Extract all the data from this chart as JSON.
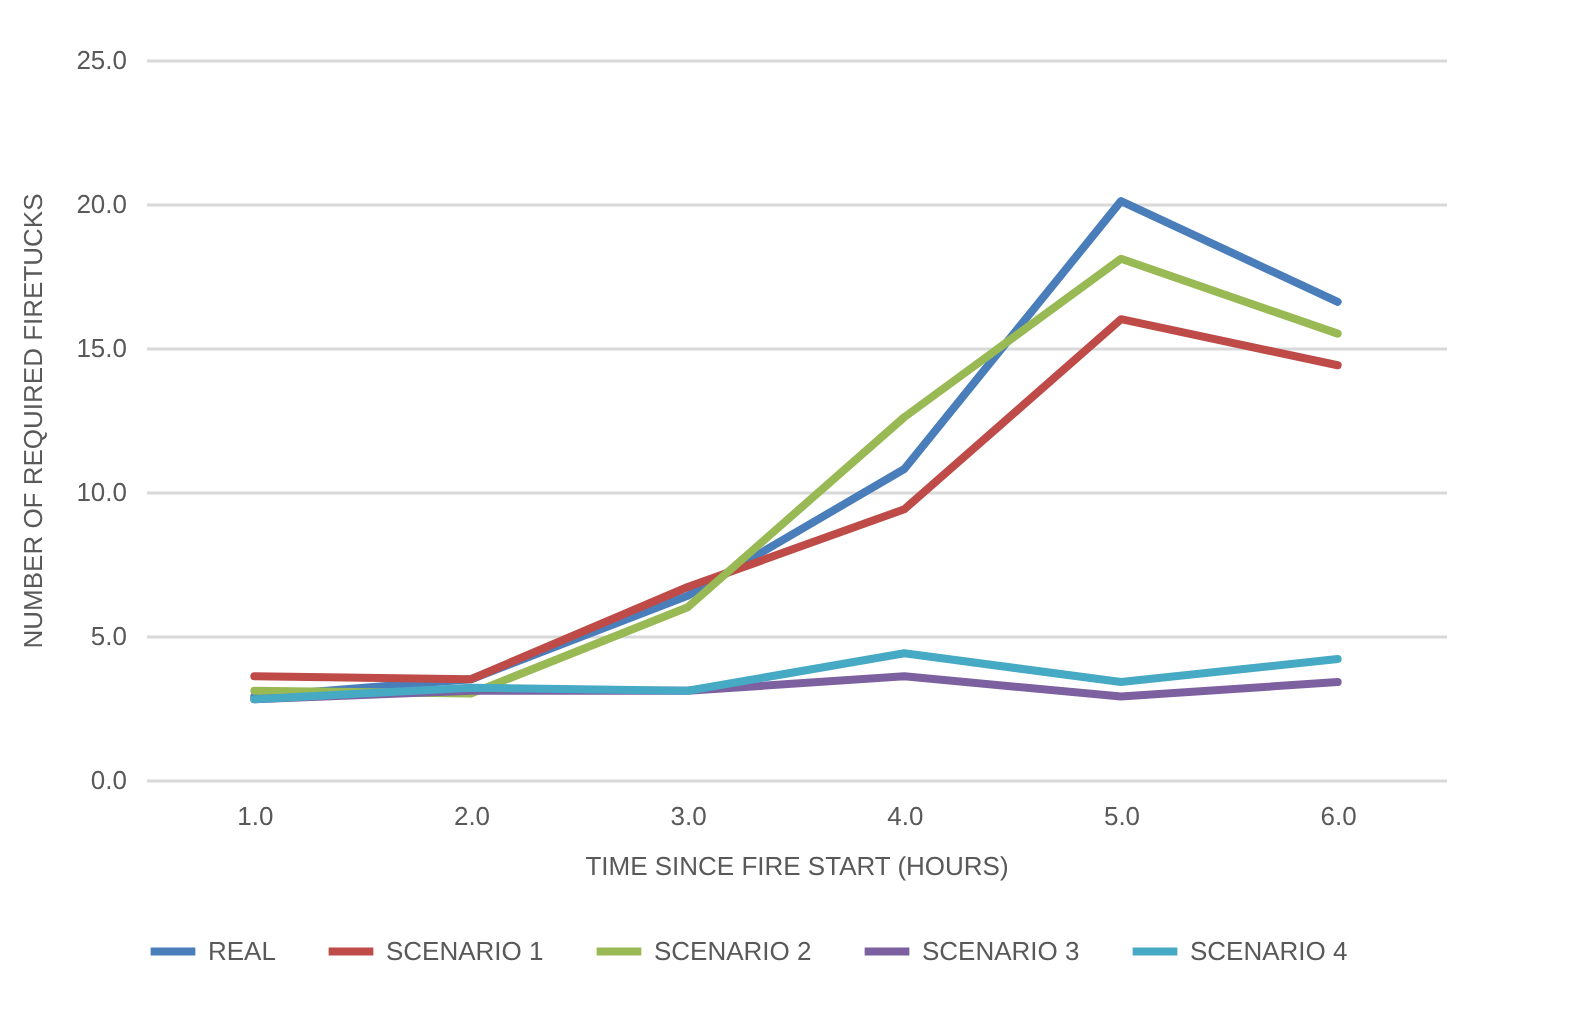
{
  "chart_data": {
    "type": "line",
    "xlabel": "TIME SINCE FIRE START (HOURS)",
    "ylabel": "NUMBER OF REQUIRED FIRETUCKS",
    "categories": [
      "1.0",
      "2.0",
      "3.0",
      "4.0",
      "5.0",
      "6.0"
    ],
    "series": [
      {
        "name": "REAL",
        "color": "#4a7ebb",
        "values": [
          2.9,
          3.5,
          6.4,
          10.8,
          20.1,
          16.6
        ]
      },
      {
        "name": "SCENARIO 1",
        "color": "#be4b48",
        "values": [
          3.6,
          3.5,
          6.7,
          9.4,
          16.0,
          14.4
        ]
      },
      {
        "name": "SCENARIO 2",
        "color": "#98b954",
        "values": [
          3.1,
          3.0,
          6.0,
          12.6,
          18.1,
          15.5
        ]
      },
      {
        "name": "SCENARIO 3",
        "color": "#7d60a0",
        "values": [
          2.8,
          3.1,
          3.1,
          3.6,
          2.9,
          3.4
        ]
      },
      {
        "name": "SCENARIO 4",
        "color": "#46aac5",
        "values": [
          2.8,
          3.2,
          3.1,
          4.4,
          3.4,
          4.2
        ]
      }
    ],
    "ylim": [
      0,
      25
    ],
    "yticks": [
      {
        "value": 0,
        "label": "0.0"
      },
      {
        "value": 5,
        "label": "5.0"
      },
      {
        "value": 10,
        "label": "10.0"
      },
      {
        "value": 15,
        "label": "15.0"
      },
      {
        "value": 20,
        "label": "20.0"
      },
      {
        "value": 25,
        "label": "25.0"
      }
    ],
    "grid": "y",
    "legend": "bottom",
    "marker": "none",
    "line_style": "solid"
  }
}
